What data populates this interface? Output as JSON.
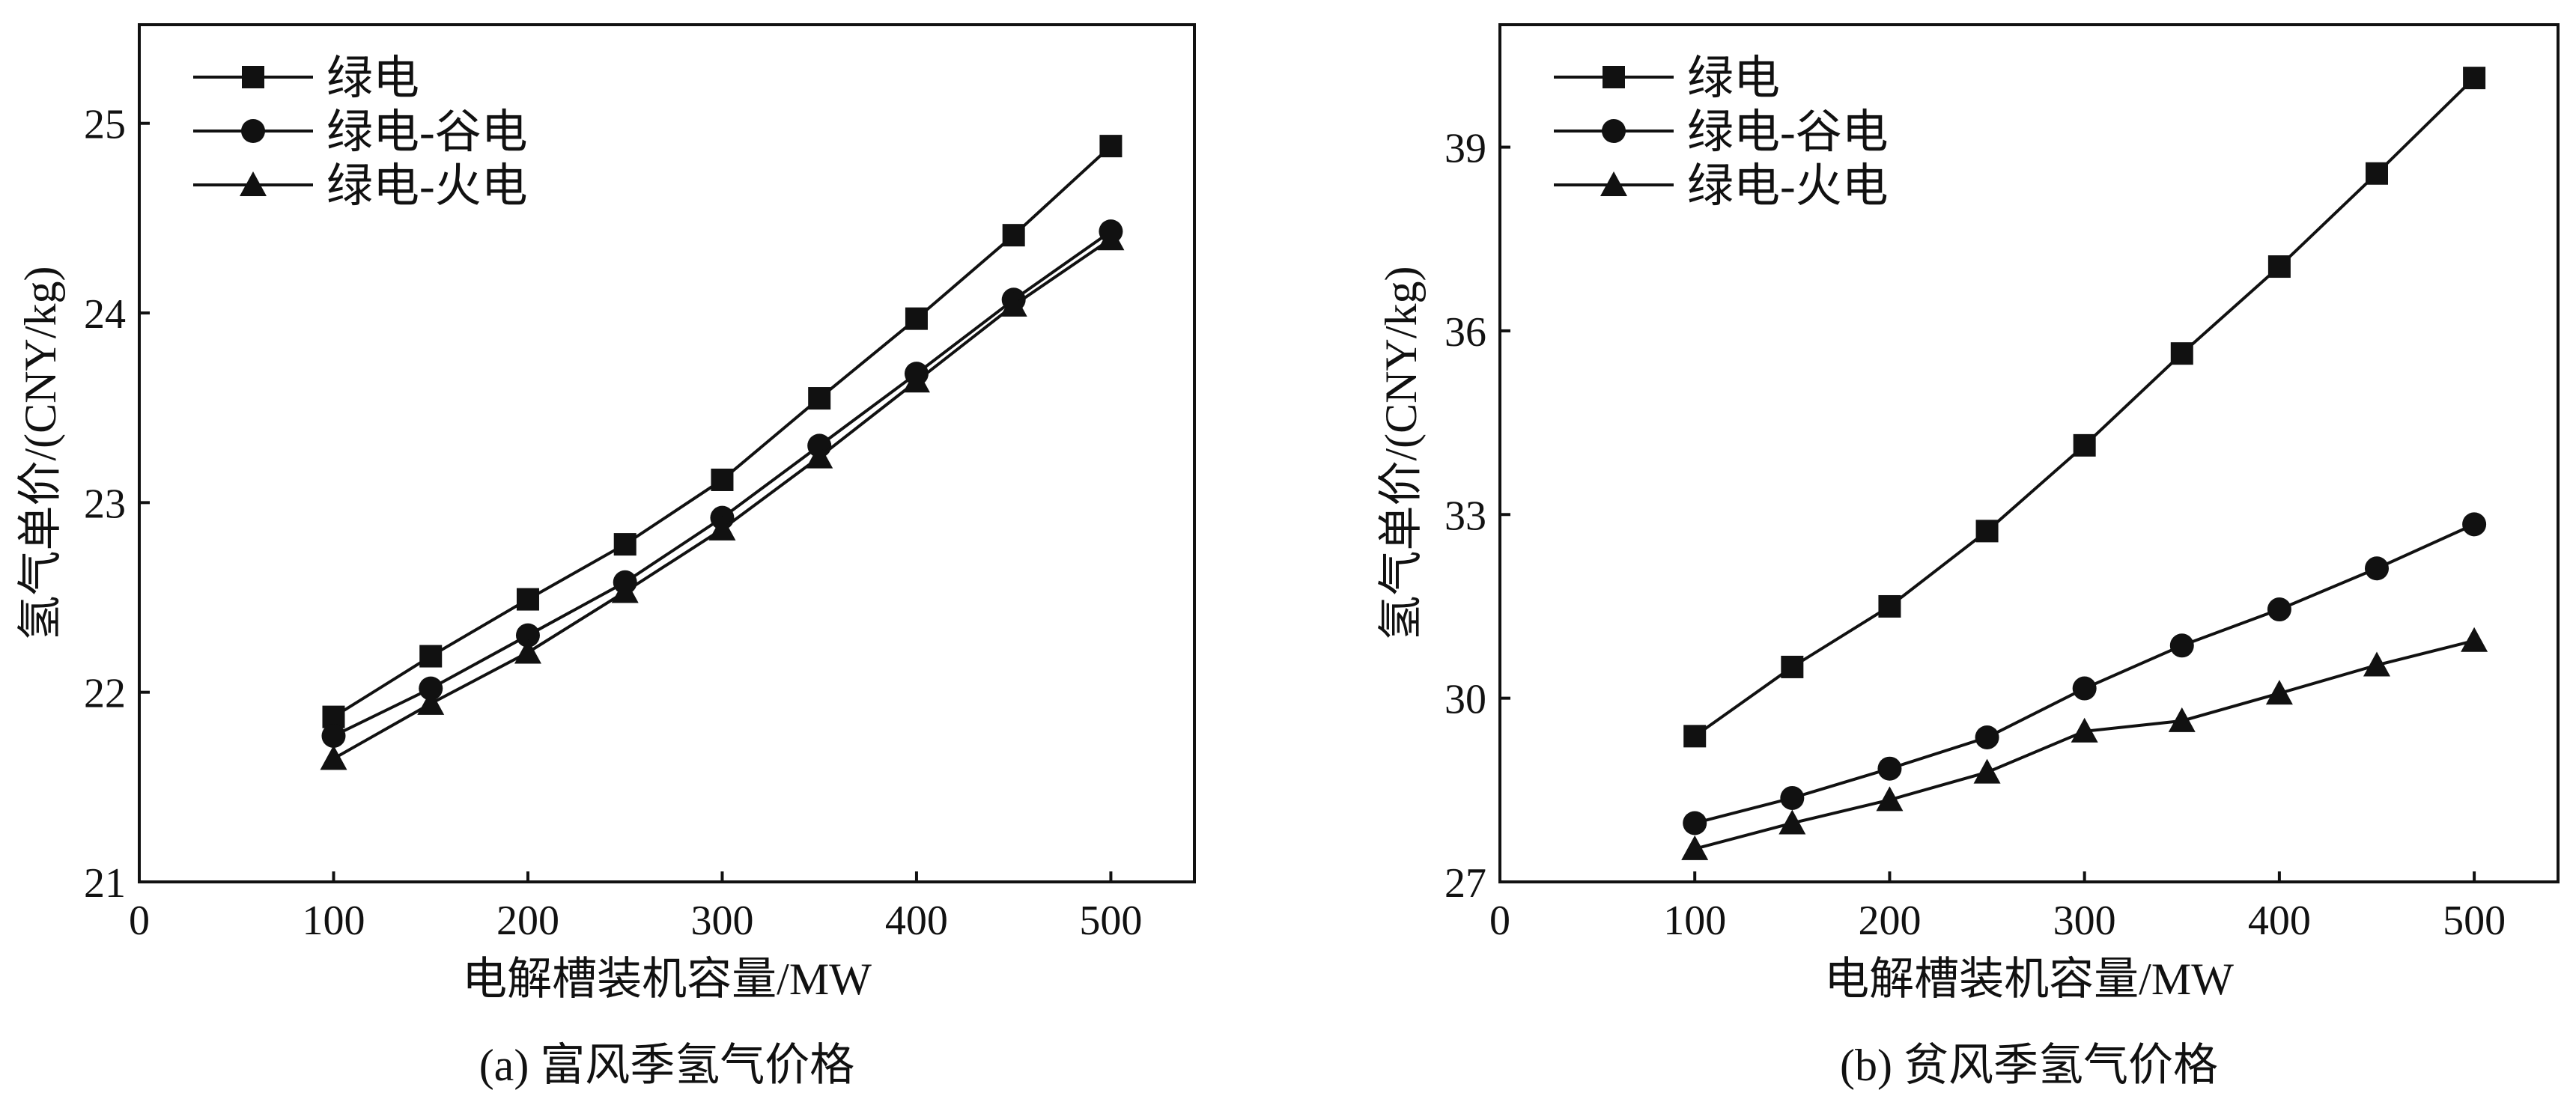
{
  "chart_data": [
    {
      "type": "line",
      "title": "(a) 富风季氢气价格",
      "xlabel": "电解槽装机容量/MW",
      "ylabel": "氢气单价/(CNY/kg)",
      "xlim": [
        0,
        543
      ],
      "ylim": [
        21,
        25.52
      ],
      "xticks": [
        0,
        100,
        200,
        300,
        400,
        500
      ],
      "yticks": [
        21,
        22,
        23,
        24,
        25
      ],
      "legend_position": "top-left",
      "grid": false,
      "x": [
        100,
        150,
        200,
        250,
        300,
        350,
        400,
        450,
        500
      ],
      "series": [
        {
          "name": "绿电",
          "marker": "square",
          "values": [
            21.87,
            22.19,
            22.49,
            22.78,
            23.12,
            23.55,
            23.97,
            24.41,
            24.88
          ]
        },
        {
          "name": "绿电-谷电",
          "marker": "circle",
          "values": [
            21.77,
            22.02,
            22.3,
            22.58,
            22.92,
            23.3,
            23.68,
            24.07,
            24.43
          ]
        },
        {
          "name": "绿电-火电",
          "marker": "triangle",
          "values": [
            21.65,
            21.94,
            22.21,
            22.53,
            22.86,
            23.24,
            23.64,
            24.04,
            24.39
          ]
        }
      ]
    },
    {
      "type": "line",
      "title": "(b) 贫风季氢气价格",
      "xlabel": "电解槽装机容量/MW",
      "ylabel": "氢气单价/(CNY/kg)",
      "xlim": [
        0,
        543
      ],
      "ylim": [
        27,
        41
      ],
      "xticks": [
        0,
        100,
        200,
        300,
        400,
        500
      ],
      "yticks": [
        27,
        30,
        33,
        36,
        39
      ],
      "legend_position": "top-left",
      "grid": false,
      "x": [
        100,
        150,
        200,
        250,
        300,
        350,
        400,
        450,
        500
      ],
      "series": [
        {
          "name": "绿电",
          "marker": "square",
          "values": [
            29.38,
            30.51,
            31.5,
            32.73,
            34.13,
            35.63,
            37.05,
            38.57,
            40.13
          ]
        },
        {
          "name": "绿电-谷电",
          "marker": "circle",
          "values": [
            27.96,
            28.37,
            28.85,
            29.36,
            30.16,
            30.86,
            31.45,
            32.12,
            32.84
          ]
        },
        {
          "name": "绿电-火电",
          "marker": "triangle",
          "values": [
            27.54,
            27.96,
            28.34,
            28.79,
            29.46,
            29.63,
            30.08,
            30.54,
            30.94
          ]
        }
      ]
    }
  ]
}
